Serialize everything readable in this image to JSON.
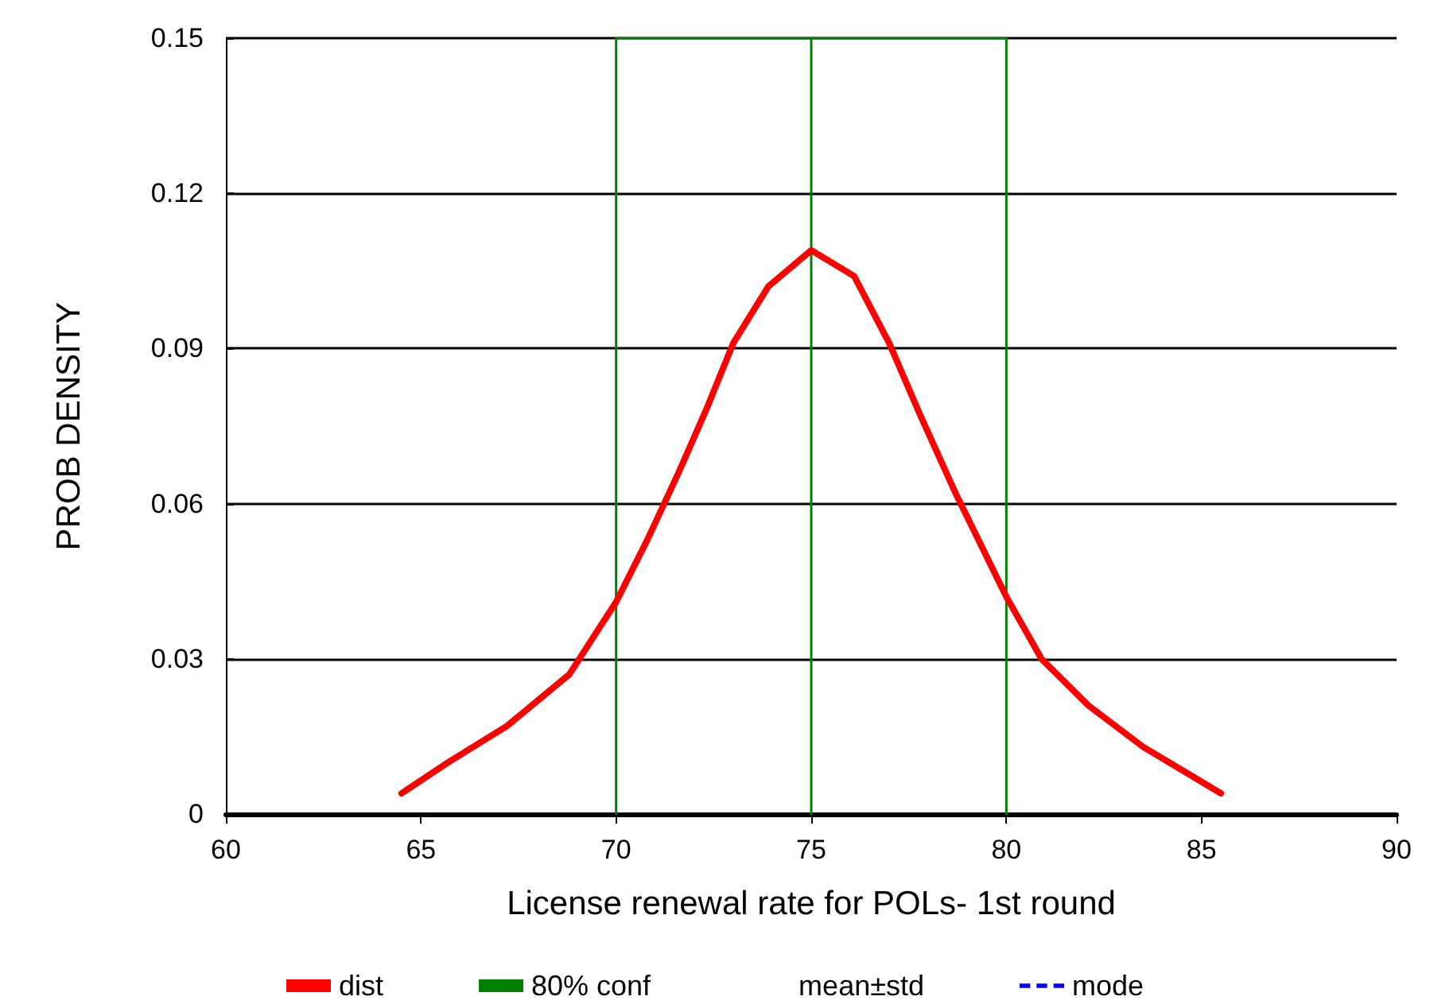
{
  "chart_data": {
    "type": "line",
    "xlabel": "License renewal rate for POLs- 1st round",
    "ylabel": "PROB DENSITY",
    "series": [
      {
        "name": "dist",
        "color": "#ff0000",
        "x": [
          64.5,
          65.7,
          67.2,
          68.8,
          70.0,
          70.8,
          71.6,
          72.3,
          73.0,
          73.9,
          75.0,
          76.1,
          77.0,
          77.8,
          78.7,
          80.0,
          80.9,
          82.1,
          83.5,
          85.5
        ],
        "values": [
          0.004,
          0.01,
          0.017,
          0.027,
          0.041,
          0.053,
          0.066,
          0.078,
          0.091,
          0.102,
          0.109,
          0.104,
          0.091,
          0.077,
          0.062,
          0.042,
          0.03,
          0.021,
          0.013,
          0.004
        ]
      },
      {
        "name": "80% conf",
        "color": "#008000",
        "x": [
          70,
          70,
          80,
          80
        ],
        "values": [
          0,
          0.15,
          0.15,
          0
        ]
      },
      {
        "color": "#008000",
        "x": [
          75,
          75
        ],
        "values": [
          0,
          0.15
        ]
      },
      {
        "name": "mean±std"
      },
      {
        "name": "mode",
        "color": "#0000ff",
        "line_style": "dashed"
      }
    ],
    "xlim": [
      60,
      90
    ],
    "xticks": [
      60,
      65,
      70,
      75,
      80,
      85,
      90
    ],
    "ylim": [
      0,
      0.15
    ],
    "yticks": [
      0,
      0.03,
      0.06,
      0.09,
      0.12,
      0.15
    ],
    "grid": "y",
    "legend": "bottom",
    "marker": "none"
  }
}
